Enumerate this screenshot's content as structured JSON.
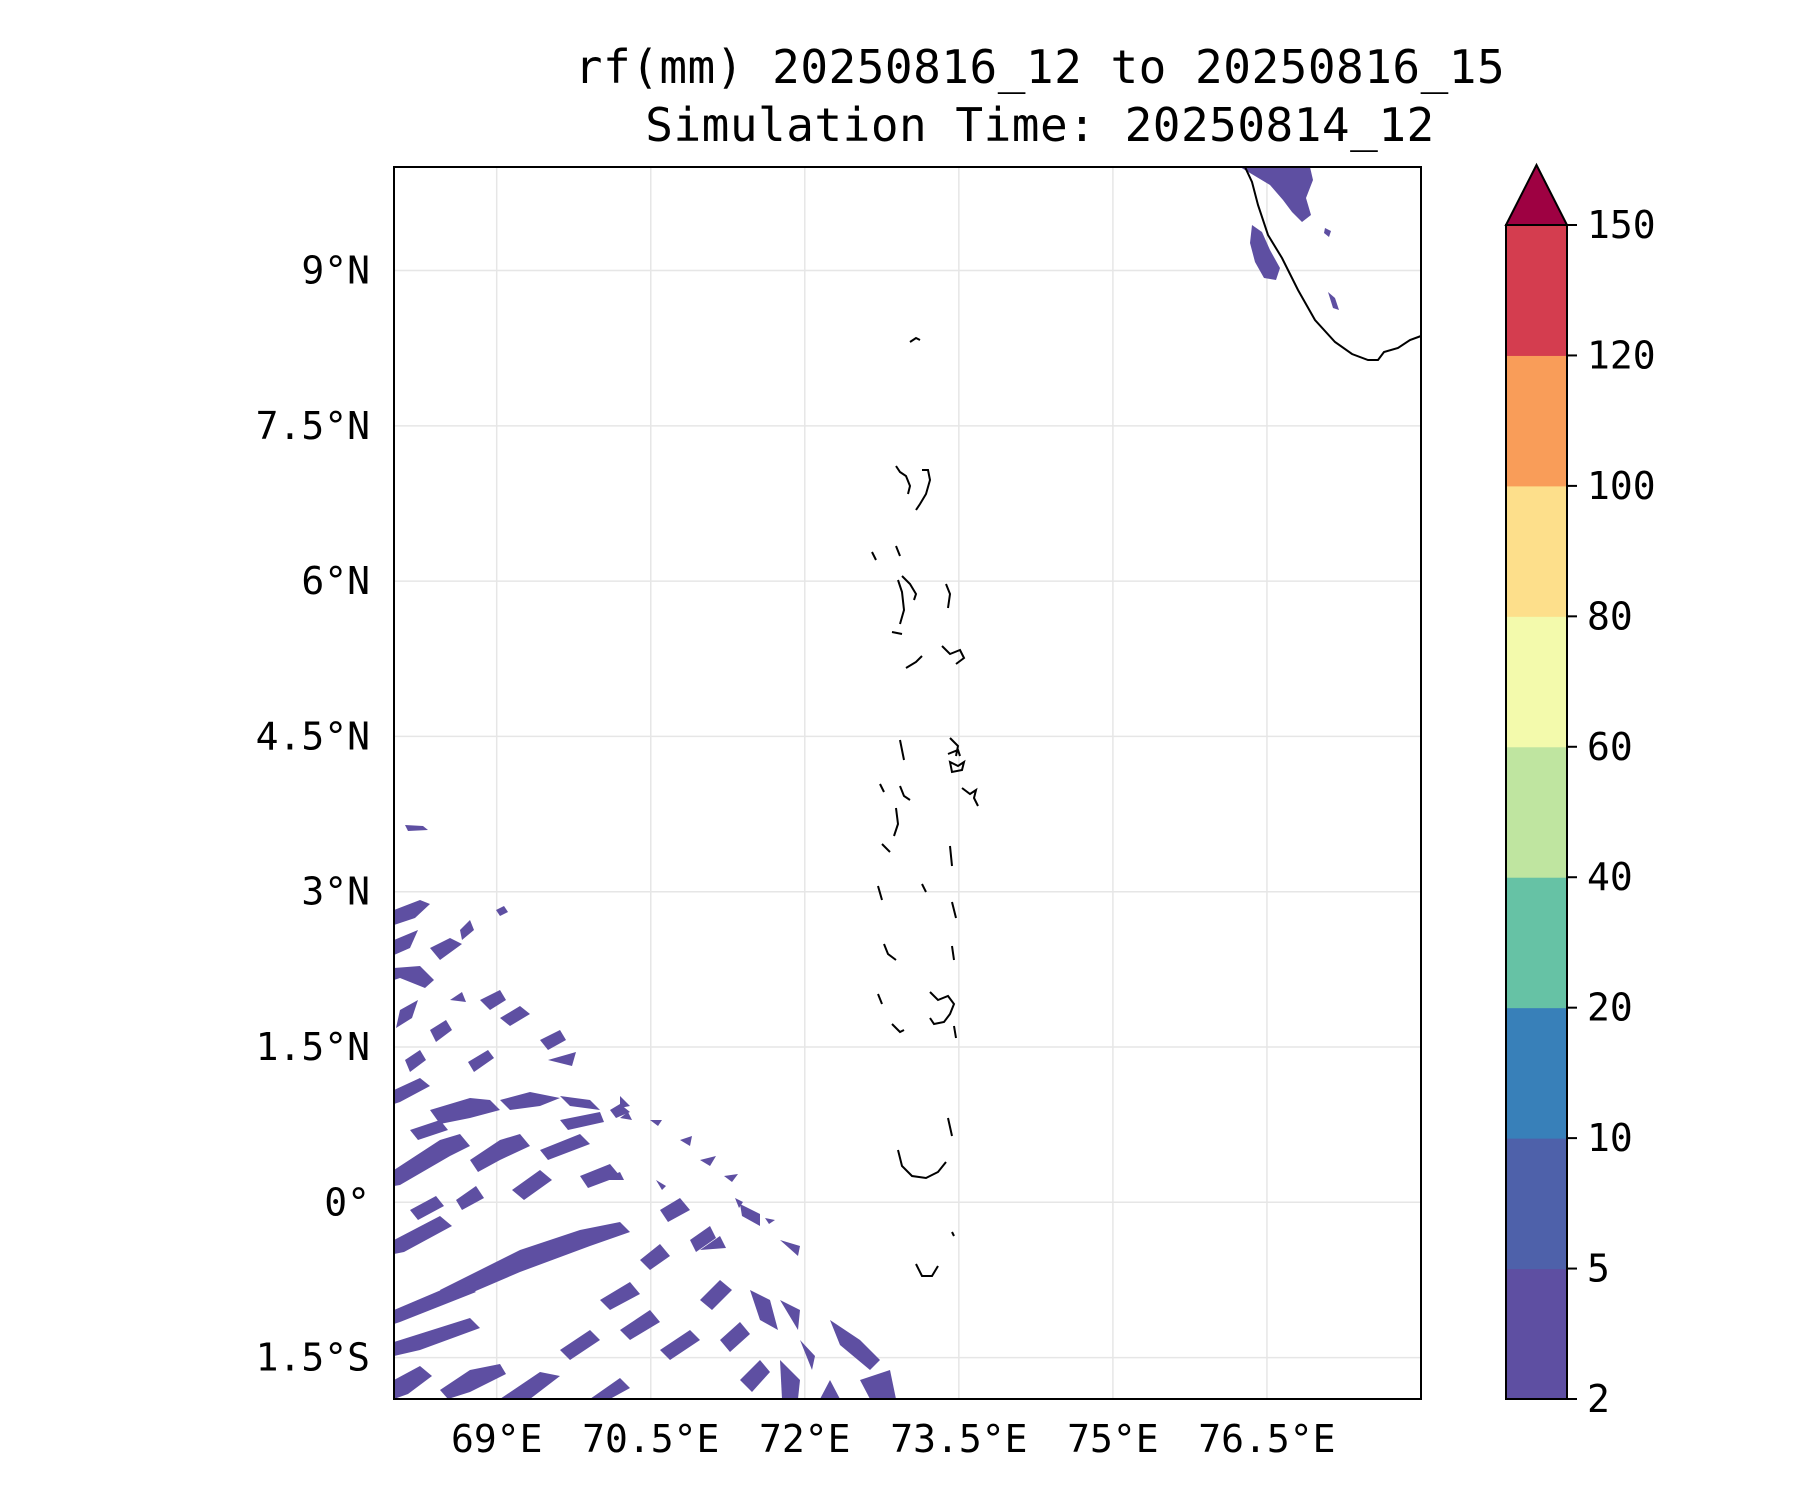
{
  "title": {
    "line1": "rf(mm) 20250816_12 to 20250816_15",
    "line2": "Simulation Time: 20250814_12"
  },
  "map": {
    "lon_range": [
      68.0,
      78.0
    ],
    "lat_range": [
      -1.9,
      10.0
    ],
    "gridlines": true,
    "rain_fill_color": "#5e4fa2",
    "coastline_color": "#000000"
  },
  "lat_ticks": [
    {
      "value": 9.0,
      "label": "9°N"
    },
    {
      "value": 7.5,
      "label": "7.5°N"
    },
    {
      "value": 6.0,
      "label": "6°N"
    },
    {
      "value": 4.5,
      "label": "4.5°N"
    },
    {
      "value": 3.0,
      "label": "3°N"
    },
    {
      "value": 1.5,
      "label": "1.5°N"
    },
    {
      "value": 0.0,
      "label": "0°"
    },
    {
      "value": -1.5,
      "label": "1.5°S"
    }
  ],
  "lon_ticks": [
    {
      "value": 69.0,
      "label": "69°E"
    },
    {
      "value": 70.5,
      "label": "70.5°E"
    },
    {
      "value": 72.0,
      "label": "72°E"
    },
    {
      "value": 73.5,
      "label": "73.5°E"
    },
    {
      "value": 75.0,
      "label": "75°E"
    },
    {
      "value": 76.5,
      "label": "76.5°E"
    }
  ],
  "colorbar": {
    "extend": "max",
    "levels": [
      "2",
      "5",
      "10",
      "20",
      "40",
      "60",
      "80",
      "100",
      "120",
      "150"
    ],
    "colors": [
      "#5e4fa2",
      "#4e61aa",
      "#3880b9",
      "#66c2a5",
      "#bfe5a0",
      "#f3faac",
      "#fddf8b",
      "#f99d59",
      "#d43d4f"
    ],
    "extend_color": "#9e0142"
  }
}
